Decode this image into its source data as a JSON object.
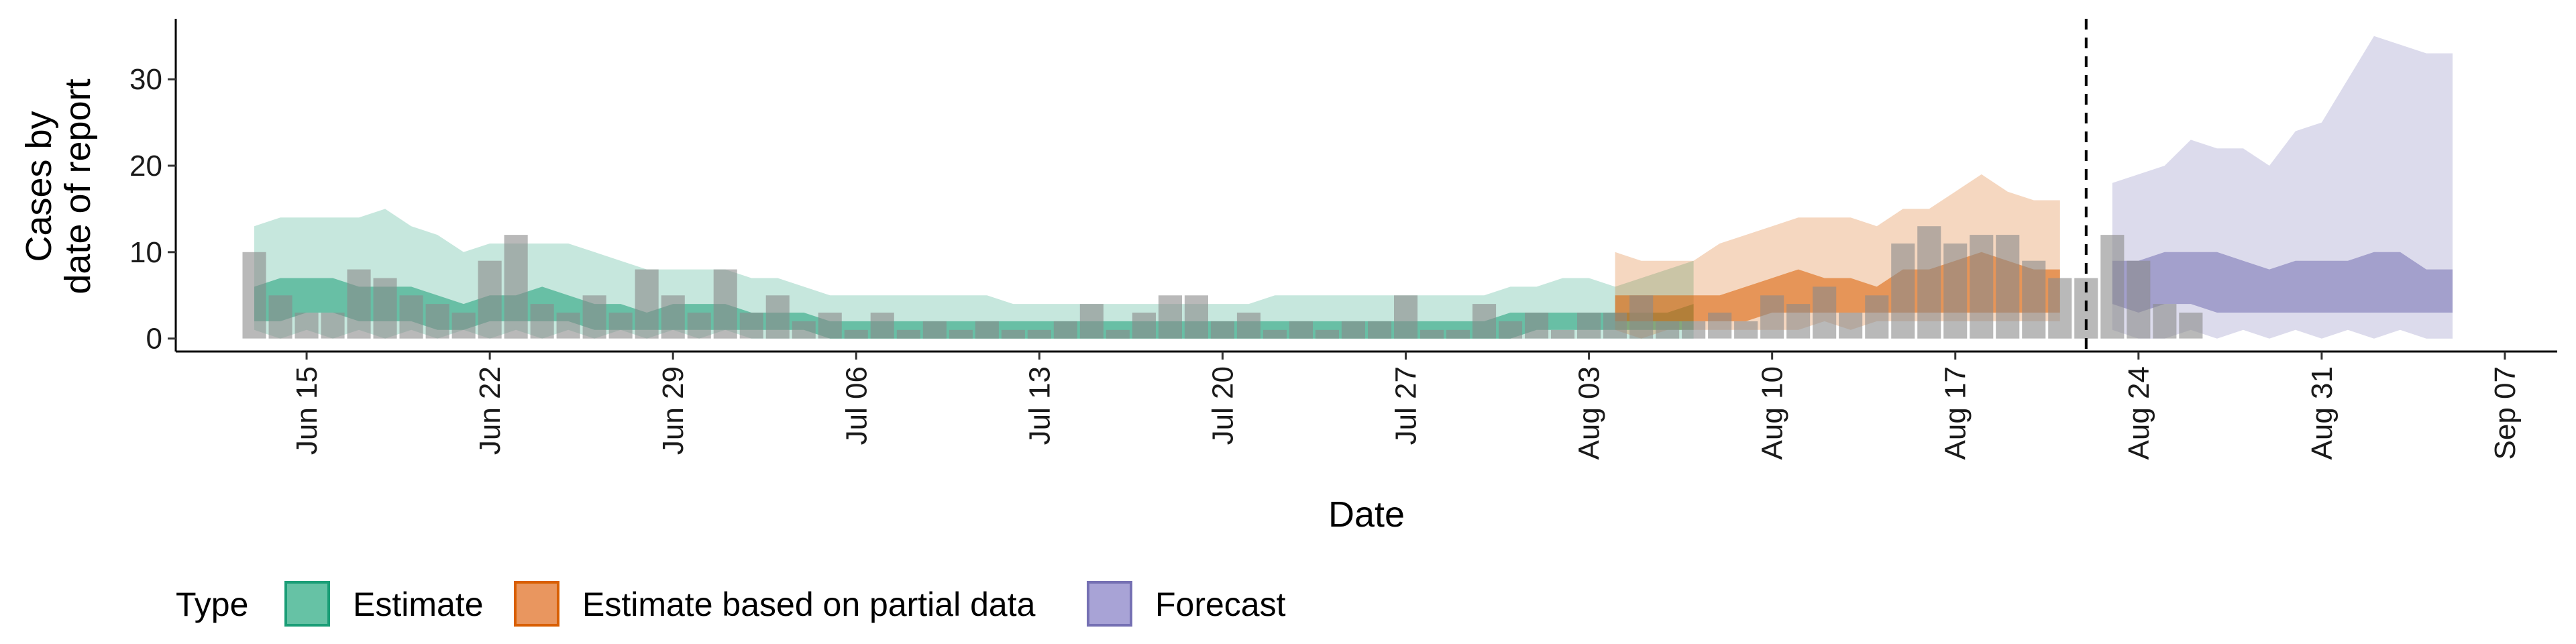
{
  "chart_data": {
    "type": "area",
    "xlabel": "Date",
    "ylabel_lines": [
      "Cases by",
      "date of report"
    ],
    "xlim": [
      "2021-06-10",
      "2021-09-09"
    ],
    "ylim": [
      -1.5,
      37
    ],
    "y_ticks": [
      0,
      10,
      20,
      30
    ],
    "x_ticks": [
      {
        "date": "2021-06-15",
        "label": "Jun 15"
      },
      {
        "date": "2021-06-22",
        "label": "Jun 22"
      },
      {
        "date": "2021-06-29",
        "label": "Jun 29"
      },
      {
        "date": "2021-07-06",
        "label": "Jul 06"
      },
      {
        "date": "2021-07-13",
        "label": "Jul 13"
      },
      {
        "date": "2021-07-20",
        "label": "Jul 20"
      },
      {
        "date": "2021-07-27",
        "label": "Jul 27"
      },
      {
        "date": "2021-08-03",
        "label": "Aug 03"
      },
      {
        "date": "2021-08-10",
        "label": "Aug 10"
      },
      {
        "date": "2021-08-17",
        "label": "Aug 17"
      },
      {
        "date": "2021-08-24",
        "label": "Aug 24"
      },
      {
        "date": "2021-08-31",
        "label": "Aug 31"
      },
      {
        "date": "2021-09-07",
        "label": "Sep 07"
      }
    ],
    "vline_date": "2021-08-22",
    "grid": false,
    "legend": {
      "position": "bottom",
      "title": "Type",
      "items": [
        {
          "label": "Estimate",
          "fill": "#66c2a5",
          "stroke": "#1b9e77"
        },
        {
          "label": "Estimate based on partial data",
          "fill": "#e9965f",
          "stroke": "#d95f02"
        },
        {
          "label": "Forecast",
          "fill": "#a8a3d6",
          "stroke": "#7570b3"
        }
      ]
    },
    "bar_color": "#8a8a8a",
    "reported_cases": {
      "start_date": "2021-06-13",
      "values": [
        10,
        5,
        3,
        3,
        8,
        7,
        5,
        4,
        3,
        9,
        12,
        4,
        3,
        5,
        3,
        8,
        5,
        3,
        8,
        3,
        5,
        2,
        3,
        1,
        3,
        1,
        2,
        1,
        2,
        1,
        1,
        2,
        4,
        1,
        3,
        5,
        5,
        2,
        3,
        1,
        2,
        1,
        2,
        2,
        5,
        1,
        1,
        4,
        2,
        3,
        1,
        3,
        3,
        5,
        2,
        2,
        3,
        2,
        5,
        4,
        6,
        3,
        5,
        11,
        13,
        11,
        12,
        12,
        9,
        7,
        7,
        12,
        9,
        4,
        3
      ]
    },
    "series": [
      {
        "name": "Estimate",
        "start_date": "2021-06-13",
        "color": "#1b9e77",
        "outer_upper": [
          13,
          14,
          14,
          14,
          14,
          15,
          13,
          12,
          10,
          11,
          11,
          11,
          11,
          10,
          9,
          8,
          8,
          8,
          8,
          7,
          7,
          6,
          5,
          5,
          5,
          5,
          5,
          5,
          5,
          4,
          4,
          4,
          4,
          4,
          4,
          4,
          4,
          4,
          4,
          5,
          5,
          5,
          5,
          5,
          5,
          5,
          5,
          5,
          6,
          6,
          7,
          7,
          6,
          7,
          8,
          9
        ],
        "outer_lower": [
          1,
          0,
          1,
          0,
          1,
          0,
          1,
          0,
          1,
          0,
          1,
          0,
          1,
          0,
          1,
          0,
          1,
          0,
          1,
          0,
          0,
          0,
          0,
          0,
          0,
          0,
          0,
          0,
          0,
          0,
          0,
          0,
          0,
          0,
          0,
          0,
          0,
          0,
          0,
          0,
          0,
          0,
          0,
          0,
          0,
          0,
          0,
          0,
          0,
          0,
          0,
          0,
          0,
          0,
          0,
          0
        ],
        "inner_upper": [
          6,
          7,
          7,
          7,
          6,
          6,
          6,
          5,
          4,
          5,
          5,
          6,
          5,
          4,
          4,
          3,
          4,
          4,
          4,
          3,
          3,
          3,
          2,
          2,
          2,
          2,
          2,
          2,
          2,
          2,
          2,
          2,
          2,
          2,
          2,
          2,
          2,
          2,
          2,
          2,
          2,
          2,
          2,
          2,
          2,
          2,
          2,
          2,
          3,
          3,
          3,
          3,
          3,
          3,
          3,
          4
        ],
        "inner_lower": [
          2,
          2,
          3,
          3,
          2,
          2,
          2,
          1,
          1,
          2,
          2,
          2,
          2,
          1,
          1,
          1,
          1,
          1,
          1,
          1,
          1,
          1,
          0,
          0,
          0,
          0,
          0,
          0,
          0,
          0,
          0,
          0,
          0,
          0,
          0,
          0,
          0,
          0,
          0,
          0,
          0,
          0,
          0,
          0,
          0,
          0,
          0,
          0,
          0,
          1,
          1,
          1,
          1,
          1,
          1,
          1
        ]
      },
      {
        "name": "Estimate based on partial data",
        "start_date": "2021-08-04",
        "color": "#d95f02",
        "outer_upper": [
          10,
          9,
          9,
          9,
          11,
          12,
          13,
          14,
          14,
          14,
          13,
          15,
          15,
          17,
          19,
          17,
          16,
          16
        ],
        "outer_lower": [
          1,
          0,
          1,
          1,
          1,
          1,
          1,
          1,
          2,
          1,
          2,
          2,
          2,
          2,
          2,
          2,
          2,
          2
        ],
        "inner_upper": [
          5,
          5,
          5,
          5,
          5,
          6,
          7,
          8,
          7,
          7,
          6,
          8,
          8,
          9,
          10,
          9,
          8,
          8
        ],
        "inner_lower": [
          2,
          2,
          2,
          2,
          2,
          2,
          3,
          3,
          3,
          3,
          3,
          3,
          3,
          3,
          3,
          3,
          3,
          3
        ]
      },
      {
        "name": "Forecast",
        "start_date": "2021-08-23",
        "color": "#7570b3",
        "outer_upper": [
          18,
          19,
          20,
          23,
          22,
          22,
          20,
          24,
          25,
          30,
          35,
          34,
          33,
          33
        ],
        "outer_lower": [
          1,
          0,
          0,
          1,
          0,
          1,
          0,
          1,
          0,
          1,
          0,
          1,
          0,
          0
        ],
        "inner_upper": [
          9,
          9,
          10,
          10,
          10,
          9,
          8,
          9,
          9,
          9,
          10,
          10,
          8,
          8
        ],
        "inner_lower": [
          4,
          3,
          4,
          4,
          3,
          3,
          3,
          3,
          3,
          3,
          3,
          3,
          3,
          3
        ]
      }
    ]
  }
}
